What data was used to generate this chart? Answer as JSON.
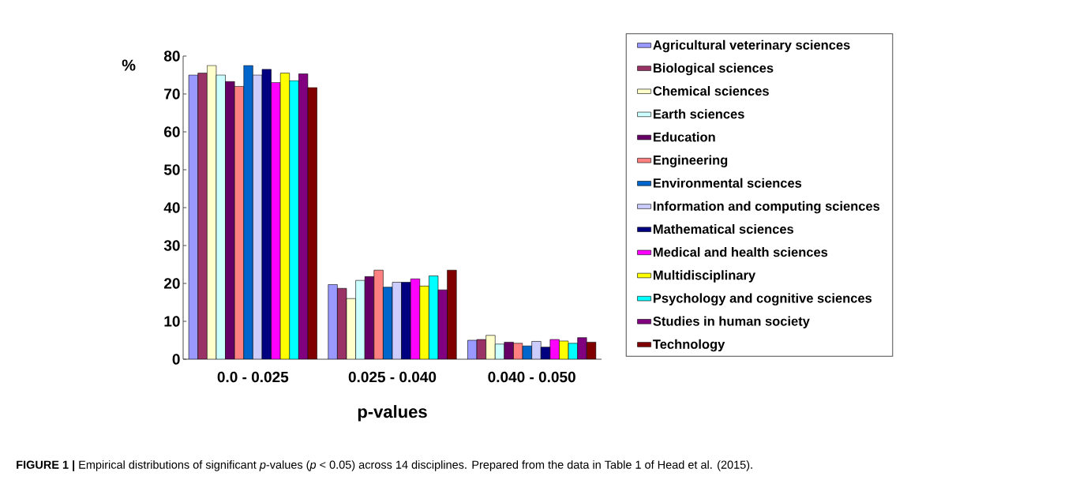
{
  "chart_data": {
    "type": "bar",
    "xlabel": "p-values",
    "ylabel": "%",
    "categories": [
      "0.0 - 0.025",
      "0.025 - 0.040",
      "0.040 - 0.050"
    ],
    "ylim": [
      0,
      80
    ],
    "yticks": [
      0,
      10,
      20,
      30,
      40,
      50,
      60,
      70,
      80
    ],
    "legend": "right",
    "annotations": [
      "**FIGURE 1 |** Empirical distributions of significant *p*-values (*p* < 0.05) across 14 disciplines. Prepared from the data in Table 1 of Head et al. (2015)."
    ],
    "series": [
      {
        "name": "Agricultural veterinary sciences",
        "color": "#9999ff",
        "values": [
          75,
          19.7,
          5
        ]
      },
      {
        "name": "Biological sciences",
        "color": "#993366",
        "values": [
          75.5,
          18.7,
          5.2
        ]
      },
      {
        "name": "Chemical sciences",
        "color": "#ffffcc",
        "values": [
          77.5,
          16,
          6.3
        ]
      },
      {
        "name": "Earth sciences",
        "color": "#ccffff",
        "values": [
          75,
          20.8,
          4
        ]
      },
      {
        "name": "Education",
        "color": "#660066",
        "values": [
          73.3,
          21.8,
          4.5
        ]
      },
      {
        "name": "Engineering",
        "color": "#ff8080",
        "values": [
          72,
          23.5,
          4.2
        ]
      },
      {
        "name": "Environmental sciences",
        "color": "#0066cc",
        "values": [
          77.5,
          19,
          3.5
        ]
      },
      {
        "name": "Information and computing sciences",
        "color": "#ccccff",
        "values": [
          75,
          20.3,
          4.7
        ]
      },
      {
        "name": "Mathematical sciences",
        "color": "#000080",
        "values": [
          76.5,
          20.3,
          3.2
        ]
      },
      {
        "name": "Medical and health sciences",
        "color": "#ff00ff",
        "values": [
          73,
          21.2,
          5.2
        ]
      },
      {
        "name": "Multidisciplinary",
        "color": "#ffff00",
        "values": [
          75.5,
          19.3,
          4.8
        ]
      },
      {
        "name": "Psychology and cognitive sciences",
        "color": "#00ffff",
        "values": [
          73.5,
          22,
          4.2
        ]
      },
      {
        "name": "Studies in human society",
        "color": "#800080",
        "values": [
          75.3,
          18.3,
          5.7
        ]
      },
      {
        "name": "Technology",
        "color": "#800000",
        "values": [
          71.7,
          23.5,
          4.5
        ]
      }
    ]
  }
}
